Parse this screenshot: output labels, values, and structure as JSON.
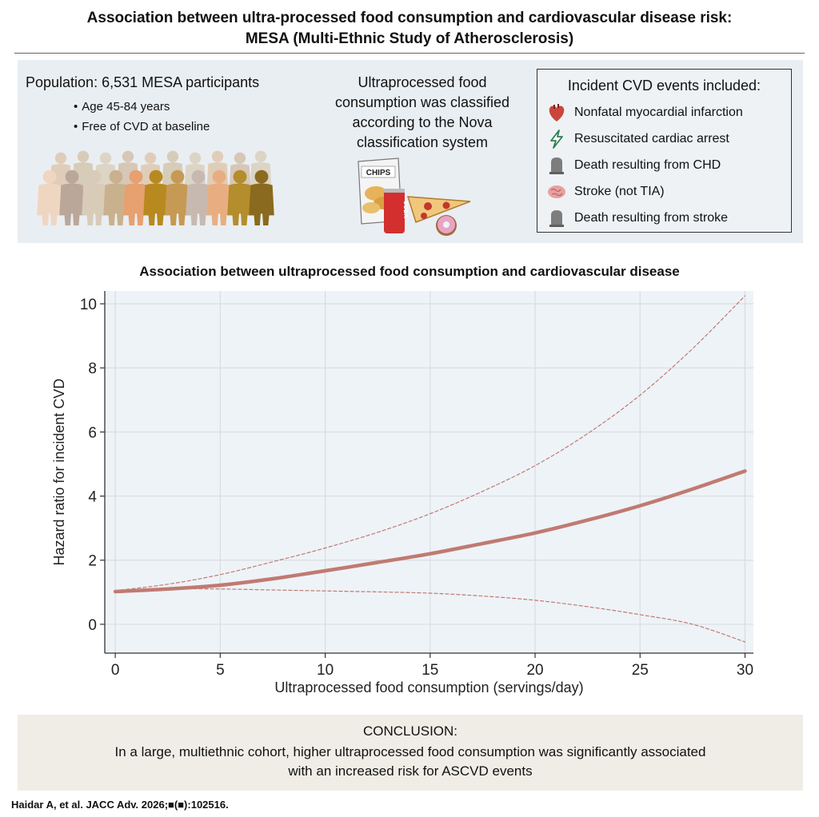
{
  "header": {
    "title_line1": "Association between ultra-processed food consumption and cardiovascular disease risk:",
    "title_line2": "MESA (Multi-Ethnic Study of Atherosclerosis)"
  },
  "population": {
    "title": "Population: 6,531 MESA participants",
    "bullets": [
      "Age 45-84 years",
      "Free of CVD at baseline"
    ]
  },
  "upf": {
    "line1": "Ultraprocessed food",
    "line2": "consumption was classified",
    "line3": "according to the Nova",
    "line4": "classification system",
    "chips_label": "CHIPS",
    "soda_label": "SODA"
  },
  "cvd_events": {
    "title": "Incident CVD events included:",
    "items": [
      {
        "label": "Nonfatal myocardial infarction",
        "icon": "heart-icon"
      },
      {
        "label": "Resuscitated cardiac arrest",
        "icon": "lightning-icon"
      },
      {
        "label": "Death resulting from CHD",
        "icon": "tombstone-icon"
      },
      {
        "label": "Stroke (not TIA)",
        "icon": "brain-icon"
      },
      {
        "label": "Death resulting from stroke",
        "icon": "tombstone-icon"
      }
    ]
  },
  "chart_title": "Association between ultraprocessed food consumption and cardiovascular disease",
  "chart_data": {
    "type": "line",
    "title": "Association between ultraprocessed food consumption and cardiovascular disease",
    "xlabel": "Ultraprocessed food consumption (servings/day)",
    "ylabel": "Hazard ratio for incident CVD",
    "xlim": [
      -0.5,
      30.4
    ],
    "ylim": [
      -0.9,
      10.4
    ],
    "xticks": [
      0,
      5,
      10,
      15,
      20,
      25,
      30
    ],
    "yticks": [
      0,
      2,
      4,
      6,
      8,
      10
    ],
    "grid": true,
    "series": [
      {
        "name": "Hazard ratio",
        "style": "solid",
        "x": [
          0,
          2.5,
          5,
          7.5,
          10,
          12.5,
          15,
          17.5,
          20,
          22.5,
          25,
          27.5,
          30
        ],
        "y": [
          1.02,
          1.1,
          1.22,
          1.42,
          1.67,
          1.93,
          2.2,
          2.52,
          2.85,
          3.25,
          3.7,
          4.22,
          4.78
        ]
      },
      {
        "name": "Upper 95% CI",
        "style": "dashed",
        "x": [
          0,
          2.5,
          5,
          7.5,
          10,
          12.5,
          15,
          17.5,
          20,
          22.5,
          25,
          27.5,
          30
        ],
        "y": [
          1.05,
          1.25,
          1.55,
          1.95,
          2.38,
          2.87,
          3.45,
          4.15,
          4.95,
          5.95,
          7.15,
          8.6,
          10.25
        ]
      },
      {
        "name": "Lower 95% CI",
        "style": "dashed",
        "x": [
          0,
          2.5,
          5,
          7.5,
          10,
          12.5,
          15,
          17.5,
          20,
          22.5,
          25,
          27.5,
          30
        ],
        "y": [
          1.0,
          1.1,
          1.1,
          1.07,
          1.04,
          1.01,
          0.97,
          0.88,
          0.75,
          0.55,
          0.3,
          0.0,
          -0.55
        ]
      }
    ],
    "colors": {
      "line": "#c07a72",
      "ci": "#c07a72",
      "plot_bg": "#eef3f7",
      "grid": "#d9dde1"
    }
  },
  "conclusion": {
    "title": "CONCLUSION:",
    "line1": "In a large, multiethnic cohort, higher ultraprocessed food consumption was significantly associated",
    "line2": "with an increased risk for ASCVD events"
  },
  "citation": "Haidar A, et al. JACC Adv. 2026;■(■):102516."
}
